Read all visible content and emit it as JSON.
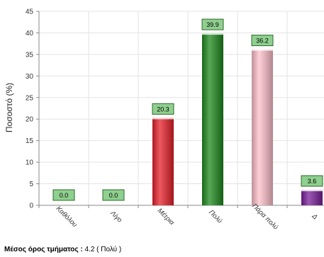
{
  "chart_data": {
    "type": "bar",
    "categories": [
      "Καθόλου",
      "Λίγο",
      "Μέτρια",
      "Πολύ",
      "Πάρα πολύ",
      "Δ"
    ],
    "values": [
      0.0,
      0.0,
      20.3,
      39.9,
      36.2,
      3.6
    ],
    "value_labels": [
      "0.0",
      "0.0",
      "20.3",
      "39.9",
      "36.2",
      "3.6"
    ],
    "bar_colors": [
      "#cccccc",
      "#cccccc",
      "#e8202a",
      "#1e8a1e",
      "#ffc0cb",
      "#7a1f9a"
    ],
    "title": "",
    "xlabel": "",
    "ylabel": "Ποσοστό (%)",
    "ylim": [
      0,
      45
    ],
    "yticks": [
      0,
      5,
      10,
      15,
      20,
      25,
      30,
      35,
      40,
      45
    ],
    "grid": true,
    "legend": "none",
    "label_box_color": "#8fcf8f"
  },
  "footer": {
    "label": "Μέσος όρος τμήματος :",
    "value": " 4.2 ( Πολύ )"
  }
}
